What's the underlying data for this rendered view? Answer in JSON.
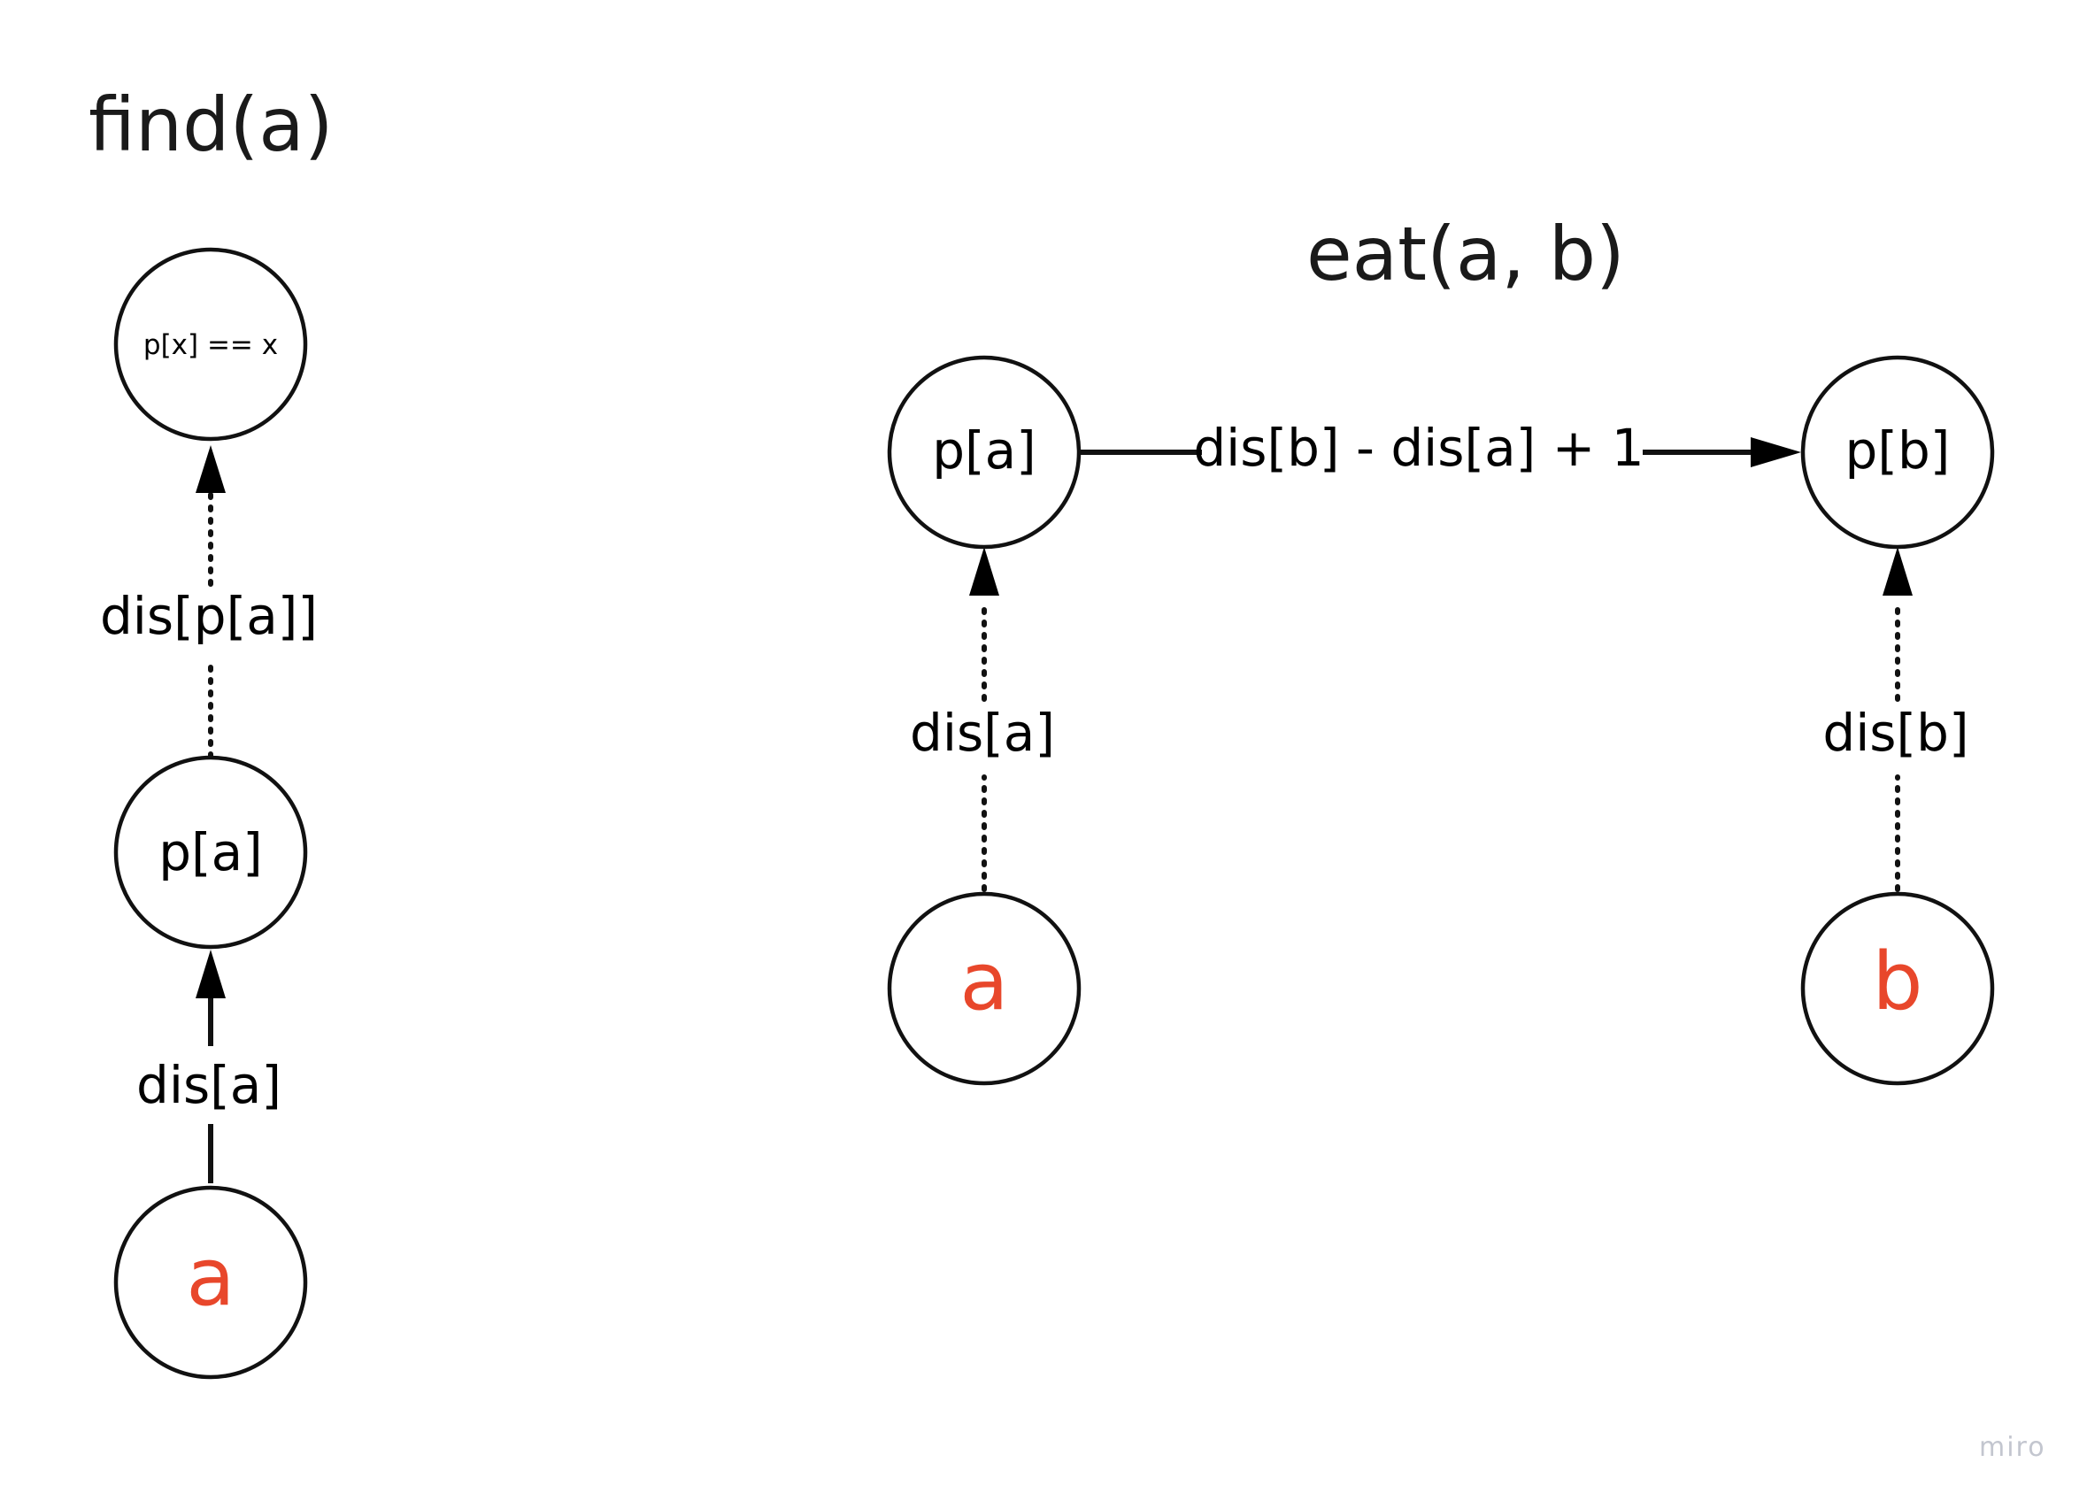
{
  "find": {
    "title": "find(a)",
    "root_node": "p[x] == x",
    "parent_node": "p[a]",
    "start_node": "a",
    "edge_parent_to_root": "dis[p[a]]",
    "edge_a_to_parent": "dis[a]"
  },
  "eat": {
    "title": "eat(a, b)",
    "pa_node": "p[a]",
    "pb_node": "p[b]",
    "a_node": "a",
    "b_node": "b",
    "edge_pa_to_pb": "dis[b] - dis[a] + 1",
    "edge_a_to_pa": "dis[a]",
    "edge_b_to_pb": "dis[b]"
  },
  "watermark": "miro",
  "colors": {
    "highlight": "#e8472b",
    "stroke": "#111111",
    "text": "#000000",
    "watermark": "#c3c6cf"
  }
}
